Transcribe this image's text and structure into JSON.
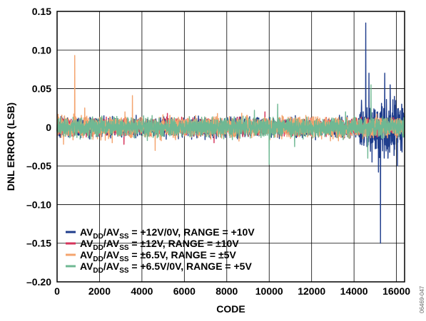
{
  "chart_data": {
    "type": "line",
    "title": "",
    "xlabel": "CODE",
    "ylabel": "DNL ERROR (LSB)",
    "xlim": [
      0,
      16384
    ],
    "ylim": [
      -0.2,
      0.15
    ],
    "x_ticks": [
      0,
      2000,
      4000,
      6000,
      8000,
      10000,
      12000,
      14000,
      16000
    ],
    "y_ticks": [
      -0.2,
      -0.15,
      -0.1,
      -0.05,
      0,
      0.05,
      0.1,
      0.15
    ],
    "x_tick_labels": [
      "0",
      "2000",
      "4000",
      "6000",
      "8000",
      "10000",
      "12000",
      "14000",
      "16000"
    ],
    "y_tick_labels": [
      "–0.20",
      "–0.15",
      "–0.10",
      "–0.05",
      "0",
      "0.05",
      "0.10",
      "0.15"
    ],
    "grid": true,
    "legend_position": "bottom-left",
    "series": [
      {
        "name": "AVDD/AVSS = +12V/0V, RANGE = +10V",
        "legend": {
          "main1": "AV",
          "sub1": "DD",
          "main2": "/AV",
          "sub2": "SS",
          "rest": " = +12V/0V, RANGE = +10V"
        },
        "color": "#1f3d8c",
        "noise": 0.012,
        "spikes": [
          [
            14550,
            0.135
          ],
          [
            15250,
            -0.15
          ],
          [
            15150,
            -0.058
          ],
          [
            14700,
            0.07
          ],
          [
            15450,
            0.07
          ],
          [
            15700,
            0.055
          ],
          [
            15900,
            0.04
          ],
          [
            16050,
            -0.05
          ],
          [
            14350,
            0.035
          ],
          [
            16250,
            0.03
          ],
          [
            14850,
            -0.045
          ],
          [
            15600,
            -0.04
          ]
        ]
      },
      {
        "name": "AVDD/AVSS = ±12V, RANGE = ±10V",
        "legend": {
          "main1": "AV",
          "sub1": "DD",
          "main2": "/AV",
          "sub2": "SS",
          "rest": " = ±12V, RANGE = ±10V"
        },
        "color": "#d6335a",
        "noise": 0.01,
        "spikes": [
          [
            3150,
            -0.022
          ],
          [
            5200,
            0.018
          ],
          [
            7400,
            -0.02
          ],
          [
            9800,
            0.02
          ]
        ]
      },
      {
        "name": "AVDD/AVSS = ±6.5V, RANGE = ±5V",
        "legend": {
          "main1": "AV",
          "sub1": "DD",
          "main2": "/AV",
          "sub2": "SS",
          "rest": " = ±6.5V, RANGE = ±5V"
        },
        "color": "#f4a46e",
        "noise": 0.013,
        "spikes": [
          [
            830,
            0.093
          ],
          [
            3550,
            0.041
          ],
          [
            4620,
            -0.03
          ],
          [
            300,
            -0.022
          ],
          [
            3200,
            0.02
          ],
          [
            1300,
            0.025
          ],
          [
            2600,
            -0.02
          ]
        ]
      },
      {
        "name": "AVDD/AVSS = +6.5V/0V, RANGE = +5V",
        "legend": {
          "main1": "AV",
          "sub1": "DD",
          "main2": "/AV",
          "sub2": "SS",
          "rest": " = +6.5V/0V, RANGE = +5V"
        },
        "color": "#6fb893",
        "noise": 0.012,
        "spikes": [
          [
            10000,
            -0.048
          ],
          [
            14800,
            0.055
          ],
          [
            14650,
            -0.04
          ],
          [
            10400,
            0.03
          ],
          [
            13600,
            0.02
          ],
          [
            9300,
            0.022
          ],
          [
            11200,
            -0.025
          ]
        ]
      }
    ]
  },
  "watermark": "06469-047"
}
